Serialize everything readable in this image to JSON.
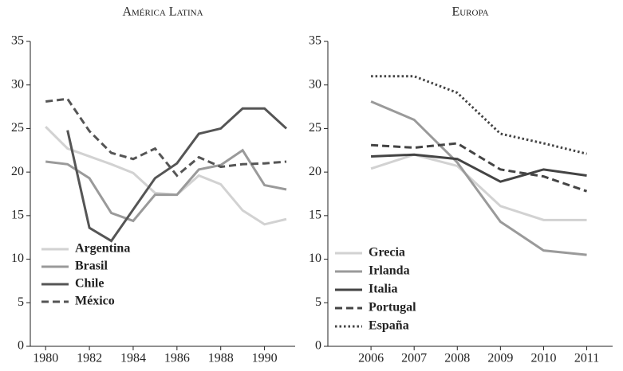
{
  "chart_data": [
    {
      "type": "line",
      "title": "América Latina",
      "x": [
        1980,
        1981,
        1982,
        1983,
        1984,
        1985,
        1986,
        1987,
        1988,
        1989,
        1990,
        1991
      ],
      "xlim": [
        1979.3,
        1991.4
      ],
      "xticks": [
        1980,
        1982,
        1984,
        1986,
        1988,
        1990
      ],
      "ylim": [
        0,
        35
      ],
      "yticks": [
        0,
        5,
        10,
        15,
        20,
        25,
        30,
        35
      ],
      "legend": "lower left",
      "series": [
        {
          "name": "Argentina",
          "color": "#d2d2d2",
          "dash": "solid",
          "values": [
            25.2,
            22.7,
            21.8,
            20.9,
            19.9,
            17.6,
            17.4,
            19.6,
            18.6,
            15.6,
            14.0,
            14.6
          ]
        },
        {
          "name": "Brasil",
          "color": "#9a9a9a",
          "dash": "solid",
          "values": [
            21.2,
            20.9,
            19.3,
            15.3,
            14.4,
            17.4,
            17.4,
            20.3,
            20.8,
            22.5,
            18.5,
            18.0
          ]
        },
        {
          "name": "Chile",
          "color": "#555555",
          "dash": "solid",
          "values": [
            null,
            24.8,
            13.6,
            12.1,
            15.7,
            19.3,
            21.0,
            24.4,
            25.0,
            27.3,
            27.3,
            25.0
          ]
        },
        {
          "name": "México",
          "color": "#555555",
          "dash": "dashed",
          "values": [
            28.1,
            28.4,
            24.7,
            22.2,
            21.5,
            22.7,
            19.6,
            21.7,
            20.6,
            20.9,
            21.0,
            21.2
          ]
        }
      ]
    },
    {
      "type": "line",
      "title": "Europa",
      "x": [
        2006,
        2007,
        2008,
        2009,
        2010,
        2011
      ],
      "xlim": [
        2005,
        2011.6
      ],
      "xticks": [
        2006,
        2007,
        2008,
        2009,
        2010,
        2011
      ],
      "ylim": [
        0,
        35
      ],
      "yticks": [
        0,
        5,
        10,
        15,
        20,
        25,
        30,
        35
      ],
      "legend": "lower left",
      "series": [
        {
          "name": "Grecia",
          "color": "#d2d2d2",
          "dash": "solid",
          "values": [
            20.4,
            22.0,
            20.7,
            16.1,
            14.5,
            14.5
          ]
        },
        {
          "name": "Irlanda",
          "color": "#9a9a9a",
          "dash": "solid",
          "values": [
            28.1,
            26.0,
            21.1,
            14.3,
            11.0,
            10.5
          ]
        },
        {
          "name": "Italia",
          "color": "#444444",
          "dash": "solid",
          "values": [
            21.8,
            22.0,
            21.5,
            18.9,
            20.3,
            19.6
          ]
        },
        {
          "name": "Portugal",
          "color": "#444444",
          "dash": "dashed",
          "values": [
            23.1,
            22.8,
            23.3,
            20.3,
            19.5,
            17.8
          ]
        },
        {
          "name": "España",
          "color": "#444444",
          "dash": "dotted",
          "values": [
            31.0,
            31.0,
            29.1,
            24.4,
            23.3,
            22.1
          ]
        }
      ]
    }
  ]
}
